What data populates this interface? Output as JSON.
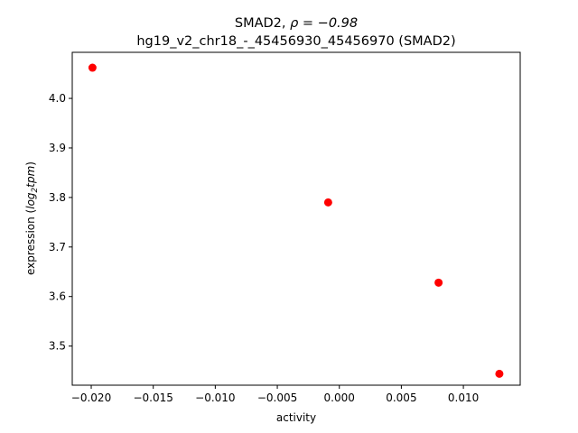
{
  "chart_data": {
    "type": "scatter",
    "title_line1_text": "SMAD2, ",
    "title_line1_rho": "ρ = −0.98",
    "title_line2": "hg19_v2_chr18_-_45456930_45456970 (SMAD2)",
    "xlabel": "activity",
    "ylabel_prefix": "expression (",
    "ylabel_log": "log",
    "ylabel_sub": "2",
    "ylabel_tpm": "tpm",
    "ylabel_suffix": ")",
    "x": [
      -0.0199,
      -0.0009,
      0.008,
      0.0129
    ],
    "y": [
      4.062,
      3.79,
      3.628,
      3.444
    ],
    "xlim": [
      -0.02153,
      0.01458
    ],
    "ylim": [
      3.421,
      4.093
    ],
    "xticks": [
      -0.02,
      -0.015,
      -0.01,
      -0.005,
      0.0,
      0.005,
      0.01
    ],
    "xtick_labels": [
      "−0.020",
      "−0.015",
      "−0.010",
      "−0.005",
      "0.000",
      "0.005",
      "0.010"
    ],
    "yticks": [
      3.5,
      3.6,
      3.7,
      3.8,
      3.9,
      4.0
    ],
    "ytick_labels": [
      "3.5",
      "3.6",
      "3.7",
      "3.8",
      "3.9",
      "4.0"
    ],
    "marker_color": "#ff0000",
    "grid": false
  }
}
